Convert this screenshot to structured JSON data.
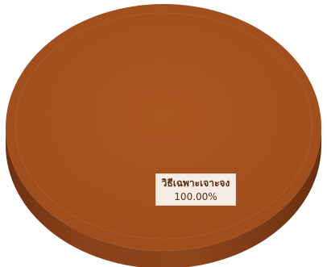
{
  "chart_data": {
    "type": "pie",
    "title": "",
    "categories": [
      "วิธีเฉพาะเจาะจง"
    ],
    "values": [
      100.0
    ],
    "data_labels": [
      {
        "category": "วิธีเฉพาะเจาะจง",
        "percent": "100.00%"
      }
    ],
    "style": "3d",
    "legend": "none",
    "colors": [
      "#a4501f"
    ]
  }
}
